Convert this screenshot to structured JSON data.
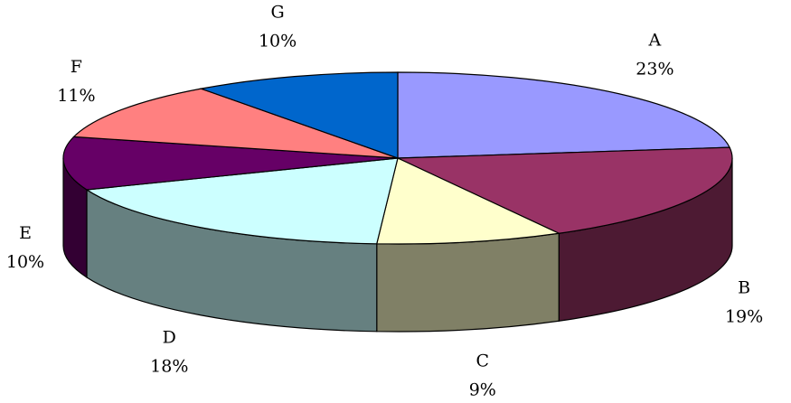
{
  "chart_data": {
    "type": "pie",
    "style": "3d",
    "title": "",
    "slices": [
      {
        "label": "A",
        "value": 23,
        "value_label": "23%",
        "color": "#9999ff"
      },
      {
        "label": "B",
        "value": 19,
        "value_label": "19%",
        "color": "#993366"
      },
      {
        "label": "C",
        "value": 9,
        "value_label": "9%",
        "color": "#ffffcc"
      },
      {
        "label": "D",
        "value": 18,
        "value_label": "18%",
        "color": "#ccffff"
      },
      {
        "label": "E",
        "value": 10,
        "value_label": "10%",
        "color": "#660066"
      },
      {
        "label": "F",
        "value": 11,
        "value_label": "11%",
        "color": "#ff8080"
      },
      {
        "label": "G",
        "value": 10,
        "value_label": "10%",
        "color": "#0066cc"
      }
    ]
  }
}
